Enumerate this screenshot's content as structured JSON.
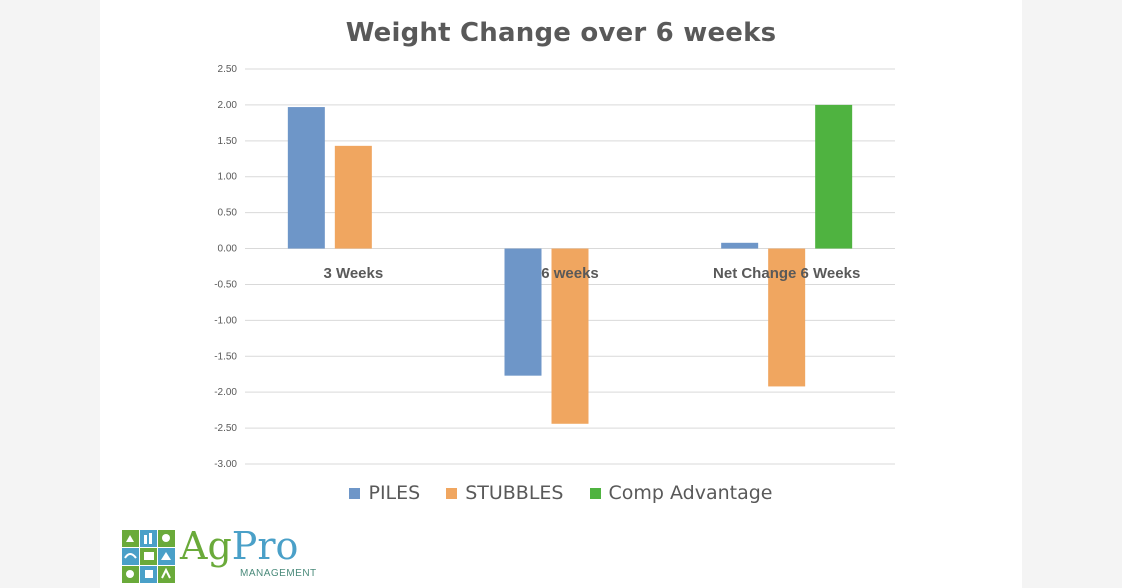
{
  "chart_data": {
    "type": "bar",
    "title": "Weight Change over 6 weeks",
    "categories": [
      "3 Weeks",
      "6 weeks",
      "Net Change 6 Weeks"
    ],
    "series": [
      {
        "name": "PILES",
        "color": "#6e96c8",
        "values": [
          1.97,
          -1.77,
          0.08
        ]
      },
      {
        "name": "STUBBLES",
        "color": "#f0a660",
        "values": [
          1.43,
          -2.44,
          -1.92
        ]
      },
      {
        "name": "Comp Advantage",
        "color": "#4fb340",
        "values": [
          null,
          null,
          2.0
        ]
      }
    ],
    "ylim": [
      -3.0,
      2.5
    ],
    "yticks": [
      "2.50",
      "2.00",
      "1.50",
      "1.00",
      "0.50",
      "0.00",
      "-0.50",
      "-1.00",
      "-1.50",
      "-2.00",
      "-2.50",
      "-3.00"
    ],
    "grid": true,
    "legend_position": "bottom"
  },
  "logo": {
    "ag": "Ag",
    "pro": "Pro",
    "sub": "MANAGEMENT",
    "icon": "farm-grid-logo-icon"
  }
}
